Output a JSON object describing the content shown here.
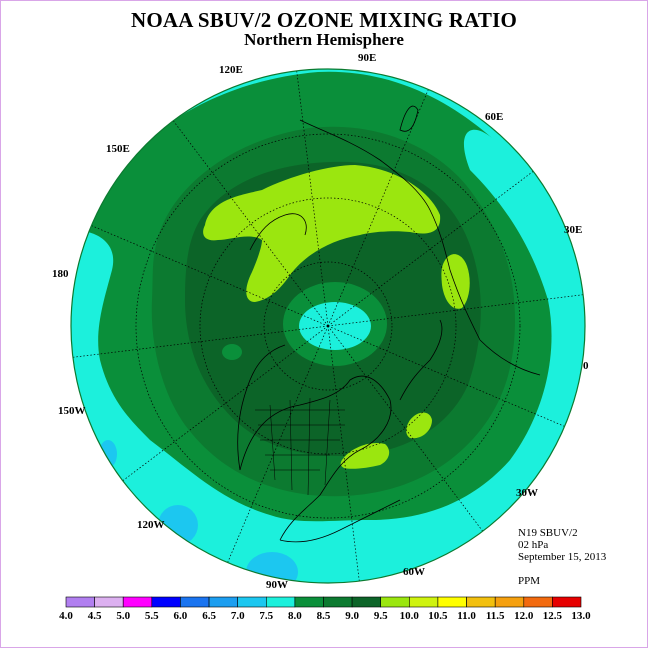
{
  "title": "NOAA SBUV/2 OZONE MIXING RATIO",
  "subtitle": "Northern Hemisphere",
  "info": {
    "instrument": "N19 SBUV/2",
    "level": "02 hPa",
    "date": "September 15, 2013",
    "units": "PPM"
  },
  "longitude_labels": [
    "90E",
    "60E",
    "30E",
    "0",
    "30W",
    "60W",
    "90W",
    "120W",
    "150W",
    "180",
    "150E",
    "120E"
  ],
  "legend": {
    "ticks": [
      "4.0",
      "4.5",
      "5.0",
      "5.5",
      "6.0",
      "6.5",
      "7.0",
      "7.5",
      "8.0",
      "8.5",
      "9.0",
      "9.5",
      "10.0",
      "10.5",
      "11.0",
      "11.5",
      "12.0",
      "12.5",
      "13.0"
    ],
    "colors": [
      "#b17ff0",
      "#dcb0f0",
      "#ff00ff",
      "#0000ff",
      "#1a74f0",
      "#1c9ef0",
      "#1cc7f0",
      "#1cf0dc",
      "#0a8f3a",
      "#0c7a30",
      "#0c6428",
      "#9be60f",
      "#cff30f",
      "#ffff00",
      "#f2c00f",
      "#f5a00f",
      "#f26a0f",
      "#e60000",
      "#8b5a3c"
    ]
  },
  "map_colors": {
    "level_7_5_to_8_0": "#1cf0dc",
    "level_7_0_to_7_5": "#1cc7f0",
    "level_8_0_to_8_5": "#0a8f3a",
    "level_8_5_to_9_0": "#0c7a30",
    "level_9_0_to_9_5": "#0c6428",
    "level_9_5_to_10_0": "#9be60f",
    "polar_low": "#1cf0dc"
  }
}
